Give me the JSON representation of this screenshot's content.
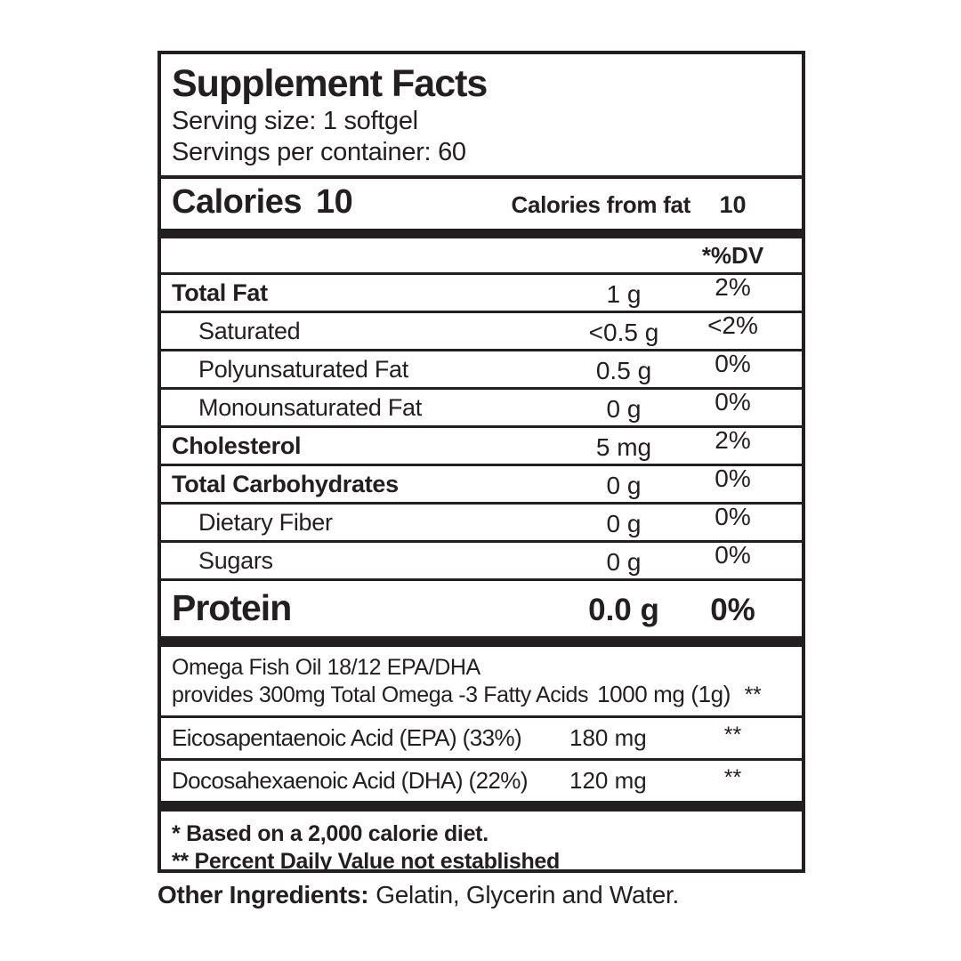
{
  "label": {
    "title": "Supplement Facts",
    "serving_size": "Serving size: 1 softgel",
    "servings_per_container": "Servings per container: 60",
    "calories": {
      "label": "Calories",
      "value": "10",
      "from_fat_label": "Calories from fat",
      "from_fat_value": "10"
    },
    "dv_header": "*%DV",
    "rows": [
      {
        "name": "Total Fat",
        "amount": "1 g",
        "dv": "2%"
      },
      {
        "name": "Saturated",
        "amount": "<0.5 g",
        "dv": "<2%"
      },
      {
        "name": "Polyunsaturated Fat",
        "amount": "0.5 g",
        "dv": "0%"
      },
      {
        "name": "Monounsaturated Fat",
        "amount": "0 g",
        "dv": "0%"
      },
      {
        "name": "Cholesterol",
        "amount": "5 mg",
        "dv": "2%"
      },
      {
        "name": "Total Carbohydrates",
        "amount": "0 g",
        "dv": "0%"
      },
      {
        "name": "Dietary Fiber",
        "amount": "0 g",
        "dv": "0%"
      },
      {
        "name": "Sugars",
        "amount": "0 g",
        "dv": "0%"
      }
    ],
    "protein": {
      "label": "Protein",
      "amount": "0.0 g",
      "dv": "0%"
    },
    "supplements": [
      {
        "name_line1": "Omega Fish Oil 18/12 EPA/DHA",
        "name_line2": "provides 300mg Total Omega -3 Fatty Acids",
        "amount": "1000 mg (1g)",
        "dv": "**"
      },
      {
        "name": "Eicosapentaenoic Acid (EPA) (33%)",
        "amount": "180 mg",
        "dv": "**"
      },
      {
        "name": "Docosahexaenoic Acid (DHA) (22%)",
        "amount": "120 mg",
        "dv": "**"
      }
    ],
    "footnotes": [
      "* Based on a 2,000 calorie diet.",
      "** Percent Daily Value not established"
    ],
    "other_ingredients": {
      "label": "Other Ingredients:",
      "text": "Gelatin, Glycerin and Water."
    },
    "colors": {
      "ink": "#231f20",
      "background": "#ffffff"
    }
  }
}
